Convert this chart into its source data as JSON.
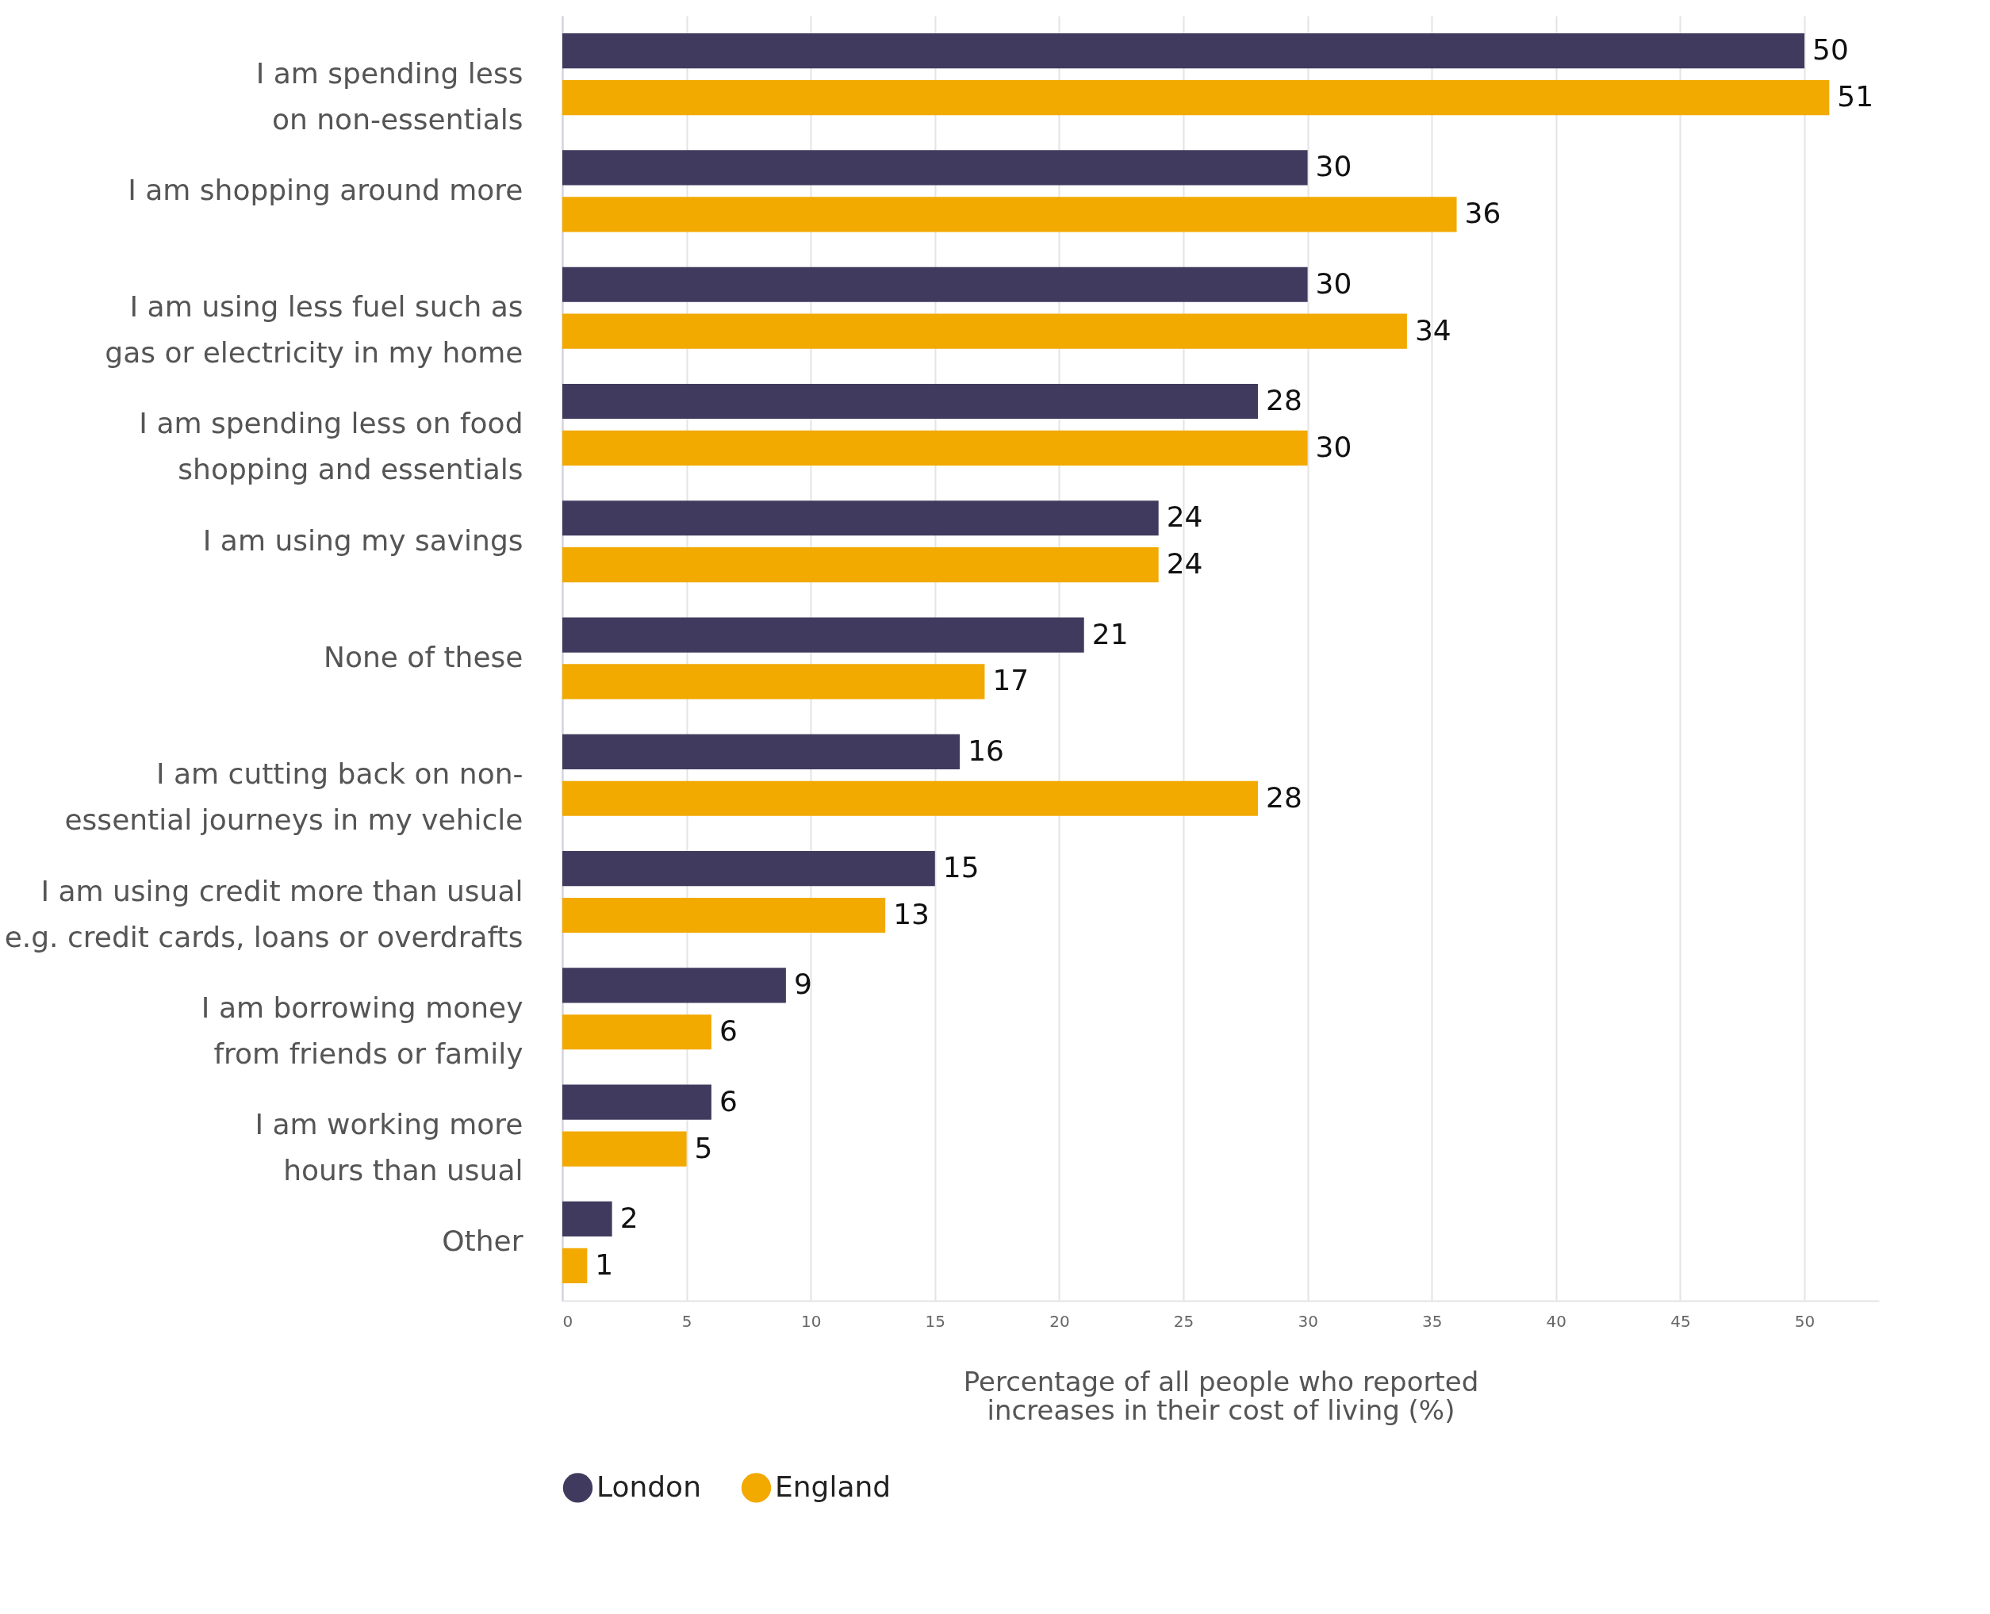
{
  "chart_data": {
    "type": "bar",
    "orientation": "horizontal",
    "categories": [
      "I am spending less\non non-essentials",
      "I am shopping around more",
      "I am using less fuel such as\ngas or electricity in my home",
      "I am spending less on food\nshopping and essentials",
      "I am using my savings",
      "None of these",
      "I am cutting back on non-\nessential journeys in my vehicle",
      "I am using credit more than usual\ne.g. credit cards, loans or overdrafts",
      "I am borrowing money\nfrom friends or family",
      "I am working more\nhours than usual",
      "Other"
    ],
    "series": [
      {
        "name": "London",
        "color": "#403b5e",
        "values": [
          50,
          30,
          30,
          28,
          24,
          21,
          16,
          15,
          9,
          6,
          2
        ]
      },
      {
        "name": "England",
        "color": "#f2a900",
        "values": [
          51,
          36,
          34,
          30,
          24,
          17,
          28,
          13,
          6,
          5,
          1
        ]
      }
    ],
    "xlabel": "Percentage of all people who reported\nincreases in their cost of living (%)",
    "xlim": [
      0,
      53
    ],
    "xticks": [
      0,
      5,
      10,
      15,
      20,
      25,
      30,
      35,
      40,
      45,
      50
    ],
    "grid": "x",
    "legend": "bottom",
    "data_labels": true
  }
}
